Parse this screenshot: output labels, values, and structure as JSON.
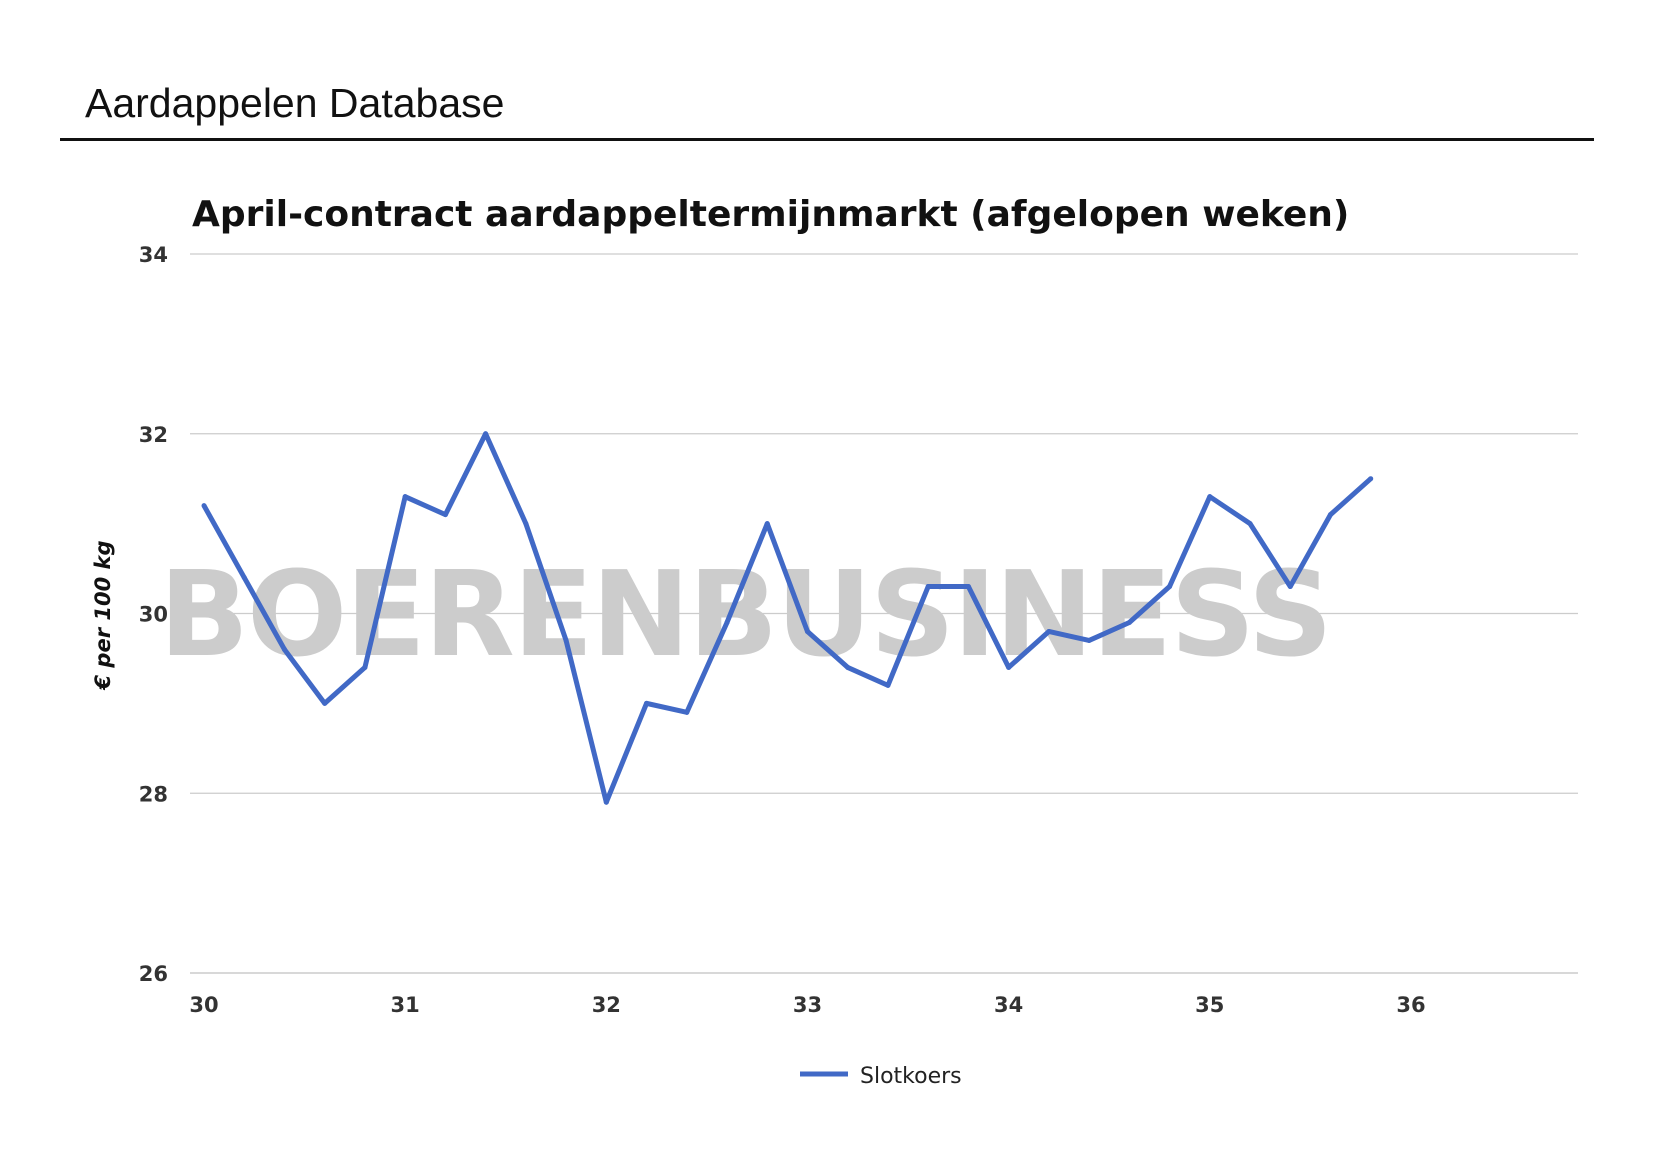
{
  "header": {
    "title": "Aardappelen Database"
  },
  "watermark": "BOERENBUSINESS",
  "colors": {
    "series": "#4169c6",
    "grid": "#cccccc",
    "watermark": "#cccccc"
  },
  "chart_data": {
    "type": "line",
    "title": "April-contract aardappeltermijnmarkt (afgelopen weken)",
    "ylabel": "€ per 100 kg",
    "xlabel": "",
    "xlim": [
      30,
      36.9
    ],
    "ylim": [
      26,
      34
    ],
    "x_ticks": [
      30,
      31,
      32,
      33,
      34,
      35,
      36
    ],
    "y_ticks": [
      26,
      28,
      30,
      32,
      34
    ],
    "grid": true,
    "legend": "bottom",
    "series": [
      {
        "name": "Slotkoers",
        "x": [
          30.0,
          30.2,
          30.4,
          30.6,
          30.8,
          31.0,
          31.2,
          31.4,
          31.6,
          31.8,
          32.0,
          32.2,
          32.4,
          32.6,
          32.8,
          33.0,
          33.2,
          33.4,
          33.6,
          33.8,
          34.0,
          34.2,
          34.4,
          34.6,
          34.8,
          35.0,
          35.2,
          35.4,
          35.6,
          35.8
        ],
        "values": [
          31.2,
          30.4,
          29.6,
          29.0,
          29.4,
          31.3,
          31.1,
          32.0,
          31.0,
          29.7,
          27.9,
          29.0,
          28.9,
          29.9,
          31.0,
          29.8,
          29.4,
          29.2,
          30.3,
          30.3,
          29.4,
          29.8,
          29.7,
          29.9,
          30.3,
          31.3,
          31.0,
          30.3,
          31.1,
          31.5
        ]
      }
    ]
  }
}
